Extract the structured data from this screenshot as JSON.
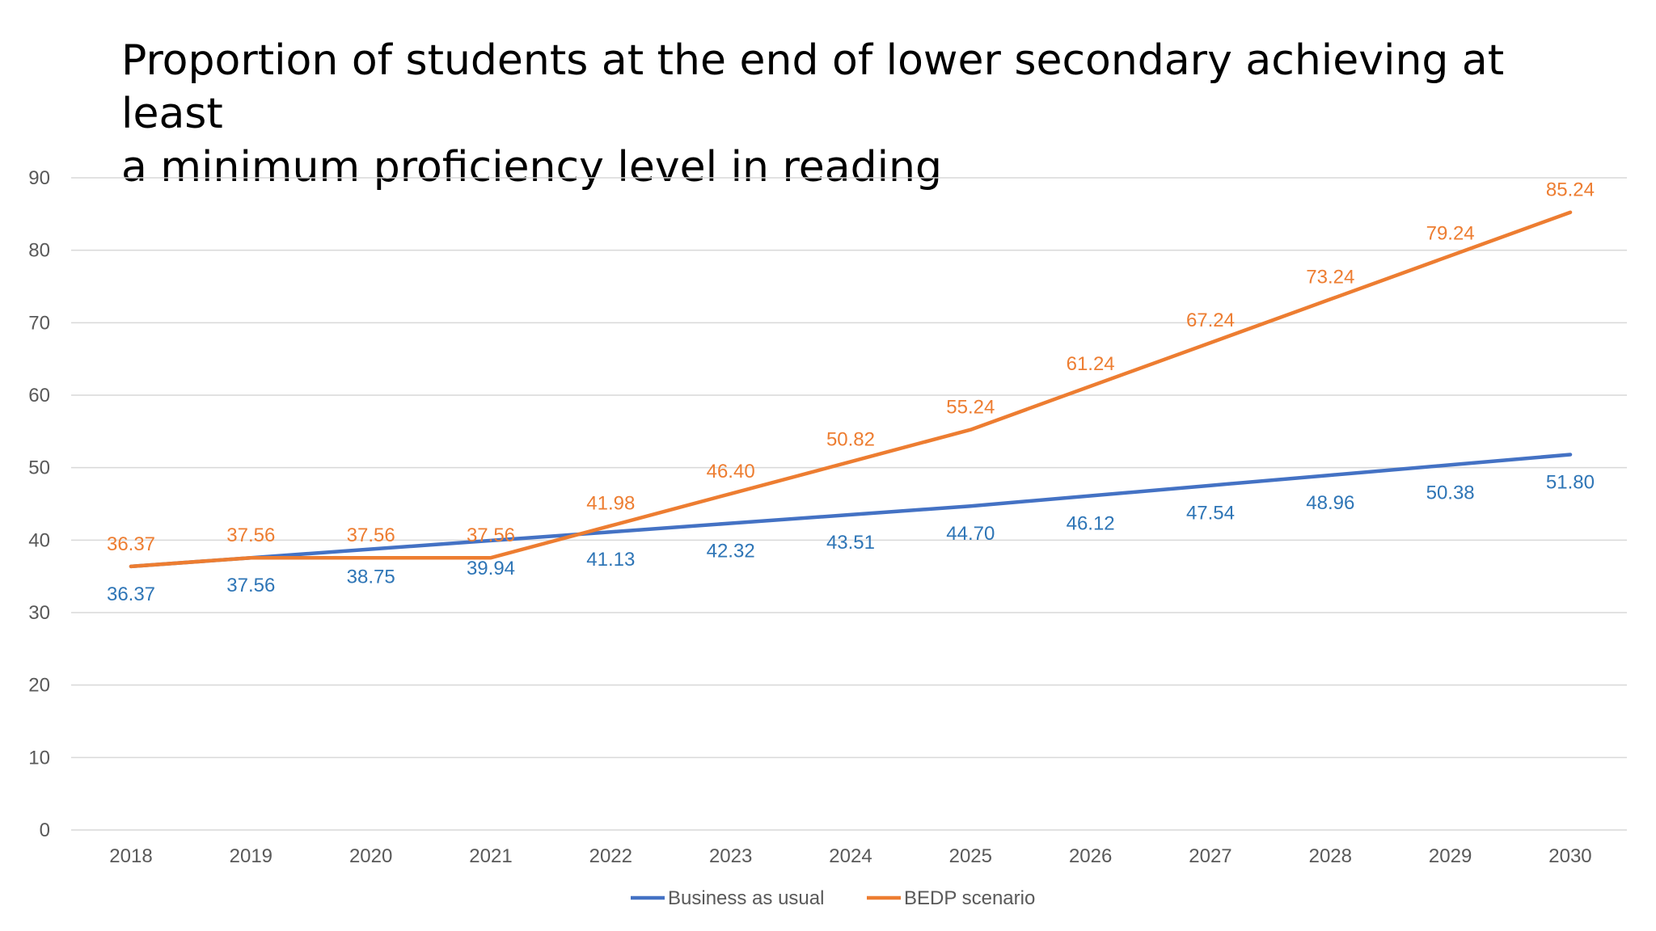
{
  "chart_data": {
    "type": "line",
    "title_lines": [
      "Proportion of students at the end of lower secondary achieving at least",
      "a minimum proficiency level in reading"
    ],
    "xlabel": "",
    "ylabel": "",
    "categories": [
      "2018",
      "2019",
      "2020",
      "2021",
      "2022",
      "2023",
      "2024",
      "2025",
      "2026",
      "2027",
      "2028",
      "2029",
      "2030"
    ],
    "ylim": [
      0,
      90
    ],
    "yticks": [
      0,
      10,
      20,
      30,
      40,
      50,
      60,
      70,
      80,
      90
    ],
    "grid": true,
    "legend_position": "bottom",
    "series": [
      {
        "name": "Business as usual",
        "color": "#4472C4",
        "label_color": "#2E75B6",
        "values": [
          36.37,
          37.56,
          38.75,
          39.94,
          41.13,
          42.32,
          43.51,
          44.7,
          46.12,
          47.54,
          48.96,
          50.38,
          51.8
        ],
        "labels": [
          "36.37",
          "37.56",
          "38.75",
          "39.94",
          "41.13",
          "42.32",
          "43.51",
          "44.70",
          "46.12",
          "47.54",
          "48.96",
          "50.38",
          "51.80"
        ]
      },
      {
        "name": "BEDP scenario",
        "color": "#ED7D31",
        "label_color": "#ED7D31",
        "values": [
          36.37,
          37.56,
          37.56,
          37.56,
          41.98,
          46.4,
          50.82,
          55.24,
          61.24,
          67.24,
          73.24,
          79.24,
          85.24
        ],
        "labels": [
          "36.37",
          "37.56",
          "37.56",
          "37.56",
          "41.98",
          "46.40",
          "50.82",
          "55.24",
          "61.24",
          "67.24",
          "73.24",
          "79.24",
          "85.24"
        ]
      }
    ]
  }
}
